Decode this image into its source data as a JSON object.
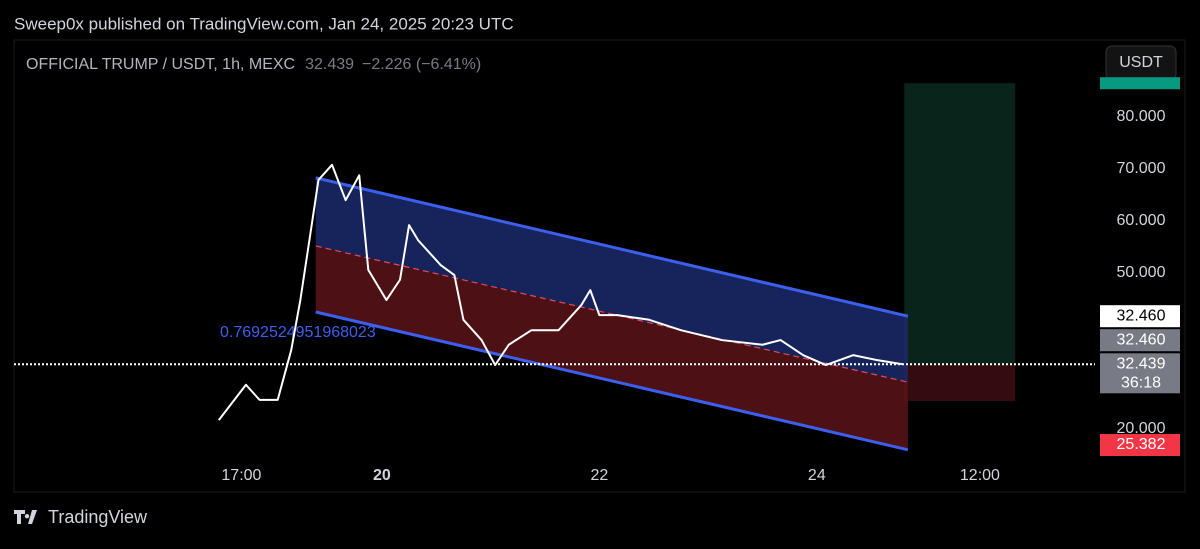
{
  "header": {
    "publisher": "Sweep0x published on TradingView.com, Jan 24, 2025 20:23 UTC",
    "brand": "TradingView"
  },
  "chart_data": {
    "type": "line",
    "title": "OFFICIAL TRUMP / USDT, 1h, MEXC",
    "last_price": "32.439",
    "change": "−2.226 (−6.41%)",
    "currency_button": "USDT",
    "xlim": [
      -33.2,
      205.4
    ],
    "xticks": [
      {
        "value": 17,
        "label": "17:00"
      },
      {
        "value": 48,
        "label": "20"
      },
      {
        "value": 96,
        "label": "22"
      },
      {
        "value": 144,
        "label": "24"
      },
      {
        "value": 180,
        "label": "12:00"
      }
    ],
    "ylim": [
      7.88,
      94.81
    ],
    "yticks": [
      {
        "value": 80,
        "label": "80.000"
      },
      {
        "value": 70,
        "label": "70.000"
      },
      {
        "value": 60,
        "label": "60.000"
      },
      {
        "value": 50,
        "label": "50.000"
      },
      {
        "value": 20,
        "label": "20.000"
      }
    ],
    "series": [
      {
        "name": "OFFICIAL TRUMP / USDT",
        "color": "#ffffff",
        "x": [
          12,
          18,
          21,
          25,
          28,
          30,
          32,
          34,
          37,
          40,
          43,
          45,
          49,
          52,
          54,
          56,
          61,
          64,
          66,
          70,
          73,
          76,
          81,
          87,
          92,
          94,
          96,
          100,
          107,
          114,
          123,
          132,
          136,
          141,
          146,
          152,
          157,
          163
        ],
        "values": [
          21.7,
          28.5,
          25.6,
          25.6,
          35.2,
          44.8,
          56.3,
          67.9,
          70.8,
          64.0,
          68.8,
          50.6,
          44.8,
          48.7,
          59.2,
          56.3,
          51.5,
          49.6,
          41.0,
          37.1,
          32.3,
          36.2,
          39.0,
          39.0,
          43.8,
          46.7,
          41.9,
          41.9,
          41.0,
          39.0,
          37.1,
          36.2,
          37.1,
          34.2,
          32.3,
          34.2,
          33.3,
          32.439
        ]
      }
    ],
    "channel": {
      "x": [
        33.4,
        164.1
      ],
      "upper": [
        68.3,
        41.7
      ],
      "middle": [
        55.2,
        29.0
      ],
      "lower": [
        42.5,
        16.0
      ],
      "label": "0.7692524951968023"
    },
    "position": {
      "x": [
        163.3,
        187.8
      ],
      "entry": 32.439,
      "target": 86.5,
      "stop": 25.382
    },
    "price_labels": [
      {
        "value": 32.46,
        "label": "32.460",
        "style": "white"
      },
      {
        "value": 32.46,
        "label": "32.460",
        "style": "gray"
      },
      {
        "value": 32.439,
        "label": "32.439",
        "countdown": "36:18",
        "style": "gray"
      },
      {
        "value": 25.382,
        "label": "25.382",
        "style": "red"
      }
    ]
  }
}
